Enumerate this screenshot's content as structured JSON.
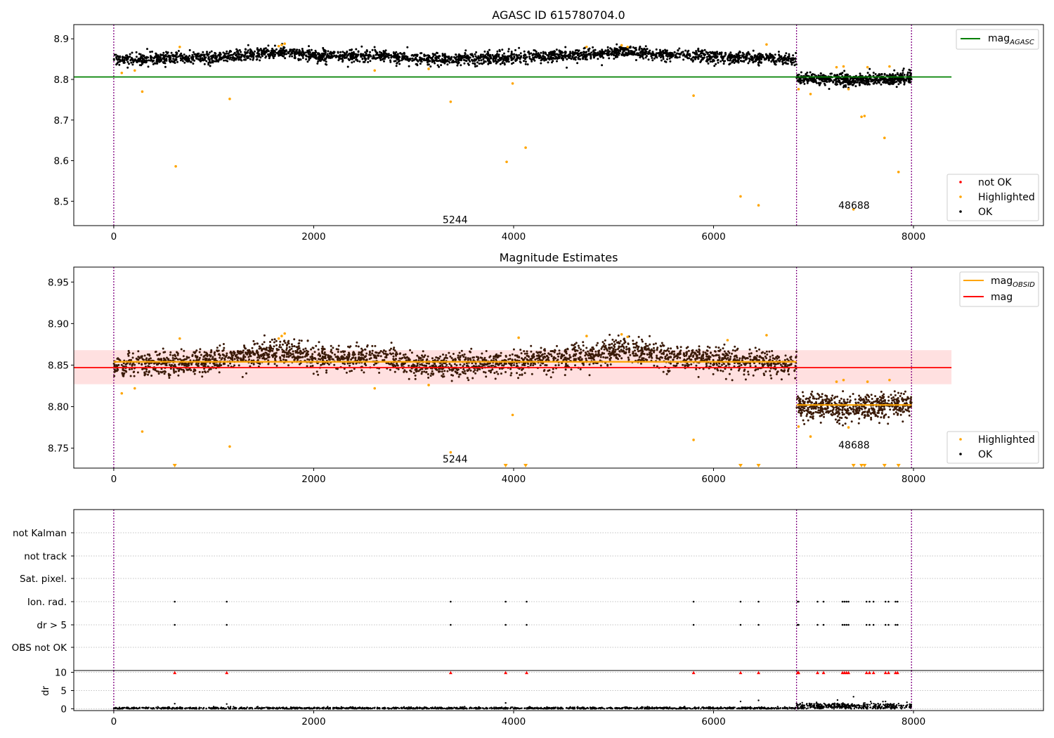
{
  "figure": {
    "type": "scatter",
    "colors": {
      "ok": "#000000",
      "highlighted": "#ffa500",
      "not_ok": "#ff0000",
      "mag_agasc_line": "#008000",
      "mag_line": "#ff0000",
      "mag_obsid_line": "#ffa500",
      "band": "#ffcccc",
      "obsid_boundary": "#800080",
      "grid": "#b0b0b0",
      "ok_mag_panel2": "#3a1a08"
    }
  },
  "chart_data": [
    {
      "type": "scatter",
      "title": "AGASC ID 615780704.0",
      "xlim": [
        -400,
        9300
      ],
      "ylim": [
        8.44,
        8.935
      ],
      "xticks": [
        0,
        2000,
        4000,
        6000,
        8000
      ],
      "yticks": [
        8.5,
        8.6,
        8.7,
        8.8,
        8.9
      ],
      "grid": false,
      "obsid_boundaries": [
        0,
        6830,
        7980
      ],
      "obsid_labels": [
        {
          "text": "5244",
          "x": 3415,
          "y": 8.455
        },
        {
          "text": "48688",
          "x": 7405,
          "y": 8.49
        }
      ],
      "lines": [
        {
          "name": "mag_AGASC",
          "name_base": "mag",
          "name_sub": "AGASC",
          "y": 8.806,
          "x": [
            -400,
            8380
          ]
        }
      ],
      "series": [
        {
          "name": "OK",
          "segments": [
            {
              "x": [
                0,
                6830
              ],
              "trend": [
                [
                  0,
                  8.848
                ],
                [
                  1000,
                  8.855
                ],
                [
                  1700,
                  8.868
                ],
                [
                  2000,
                  8.858
                ],
                [
                  2700,
                  8.86
                ],
                [
                  3000,
                  8.85
                ],
                [
                  3400,
                  8.85
                ],
                [
                  3800,
                  8.852
                ],
                [
                  4400,
                  8.858
                ],
                [
                  4800,
                  8.862
                ],
                [
                  5100,
                  8.87
                ],
                [
                  5500,
                  8.86
                ],
                [
                  6200,
                  8.855
                ],
                [
                  6830,
                  8.85
                ]
              ],
              "spread": 0.012,
              "count": 2600
            },
            {
              "x": [
                6830,
                7980
              ],
              "trend": [
                [
                  6830,
                  8.802
                ],
                [
                  7400,
                  8.798
                ],
                [
                  7980,
                  8.804
                ]
              ],
              "spread": 0.012,
              "count": 600
            }
          ]
        },
        {
          "name": "Highlighted",
          "points": [
            [
              80,
              8.816
            ],
            [
              210,
              8.822
            ],
            [
              285,
              8.77
            ],
            [
              620,
              8.586
            ],
            [
              660,
              8.88
            ],
            [
              1160,
              8.752
            ],
            [
              1680,
              8.885
            ],
            [
              1710,
              8.888
            ],
            [
              1650,
              8.882
            ],
            [
              2610,
              8.822
            ],
            [
              3150,
              8.826
            ],
            [
              3370,
              8.745
            ],
            [
              3930,
              8.597
            ],
            [
              3990,
              8.79
            ],
            [
              4120,
              8.632
            ],
            [
              4730,
              8.88
            ],
            [
              5080,
              8.884
            ],
            [
              5140,
              8.88
            ],
            [
              5800,
              8.76
            ],
            [
              6270,
              8.512
            ],
            [
              6450,
              8.49
            ],
            [
              6530,
              8.886
            ],
            [
              6850,
              8.776
            ],
            [
              6970,
              8.764
            ],
            [
              7230,
              8.83
            ],
            [
              7300,
              8.832
            ],
            [
              7350,
              8.776
            ],
            [
              7400,
              8.48
            ],
            [
              7480,
              8.708
            ],
            [
              7510,
              8.71
            ],
            [
              7540,
              8.83
            ],
            [
              7710,
              8.656
            ],
            [
              7760,
              8.832
            ],
            [
              7850,
              8.572
            ]
          ]
        },
        {
          "name": "not OK",
          "points": []
        }
      ],
      "legends": [
        {
          "position": "upper right",
          "entries": [
            {
              "name_base": "mag",
              "name_sub": "AGASC",
              "kind": "line",
              "color": "#008000"
            }
          ]
        },
        {
          "position": "lower right",
          "entries": [
            {
              "label": "not OK",
              "kind": "dot",
              "color": "#ff0000"
            },
            {
              "label": "Highlighted",
              "kind": "dot",
              "color": "#ffa500"
            },
            {
              "label": "OK",
              "kind": "dot",
              "color": "#000000"
            }
          ]
        }
      ]
    },
    {
      "type": "scatter",
      "title": "Magnitude Estimates",
      "xlim": [
        -400,
        9300
      ],
      "ylim": [
        8.726,
        8.968
      ],
      "xticks": [
        0,
        2000,
        4000,
        6000,
        8000
      ],
      "yticks": [
        8.75,
        8.8,
        8.85,
        8.9,
        8.95
      ],
      "ytick_labels": [
        "8.75",
        "8.80",
        "8.85",
        "8.90",
        "8.95"
      ],
      "grid": false,
      "obsid_boundaries": [
        0,
        6830,
        7980
      ],
      "obsid_labels": [
        {
          "text": "5244",
          "x": 3415,
          "y": 8.737
        },
        {
          "text": "48688",
          "x": 7405,
          "y": 8.754
        }
      ],
      "band": {
        "y": [
          8.827,
          8.868
        ],
        "x": [
          -400,
          8380
        ]
      },
      "lines": [
        {
          "name": "mag",
          "y": 8.847,
          "x": [
            -400,
            8380
          ],
          "color": "#ff0000"
        },
        {
          "name": "mag_OBSID",
          "name_base": "mag",
          "name_sub": "OBSID",
          "segments": [
            {
              "x": [
                0,
                6830
              ],
              "y": 8.854
            },
            {
              "x": [
                6830,
                7980
              ],
              "y": 8.802
            }
          ],
          "color": "#ffa500"
        }
      ],
      "series": [
        {
          "name": "OK",
          "segments": [
            {
              "x": [
                0,
                6830
              ],
              "trend": [
                [
                  0,
                  8.848
                ],
                [
                  1000,
                  8.855
                ],
                [
                  1700,
                  8.868
                ],
                [
                  2000,
                  8.858
                ],
                [
                  2700,
                  8.86
                ],
                [
                  3000,
                  8.85
                ],
                [
                  3400,
                  8.85
                ],
                [
                  3800,
                  8.852
                ],
                [
                  4400,
                  8.858
                ],
                [
                  4800,
                  8.862
                ],
                [
                  5100,
                  8.87
                ],
                [
                  5500,
                  8.86
                ],
                [
                  6200,
                  8.855
                ],
                [
                  6830,
                  8.85
                ]
              ],
              "spread": 0.012,
              "count": 2600
            },
            {
              "x": [
                6830,
                7980
              ],
              "trend": [
                [
                  6830,
                  8.802
                ],
                [
                  7400,
                  8.798
                ],
                [
                  7980,
                  8.804
                ]
              ],
              "spread": 0.012,
              "count": 600
            }
          ]
        },
        {
          "name": "Highlighted",
          "points": [
            [
              80,
              8.816
            ],
            [
              210,
              8.822
            ],
            [
              285,
              8.77
            ],
            [
              660,
              8.882
            ],
            [
              1160,
              8.752
            ],
            [
              1680,
              8.885
            ],
            [
              1710,
              8.888
            ],
            [
              1650,
              8.882
            ],
            [
              2610,
              8.822
            ],
            [
              3150,
              8.826
            ],
            [
              3370,
              8.745
            ],
            [
              3990,
              8.79
            ],
            [
              4050,
              8.883
            ],
            [
              4730,
              8.885
            ],
            [
              5080,
              8.887
            ],
            [
              5140,
              8.884
            ],
            [
              5800,
              8.76
            ],
            [
              6140,
              8.88
            ],
            [
              6530,
              8.886
            ],
            [
              6850,
              8.776
            ],
            [
              6970,
              8.764
            ],
            [
              7230,
              8.83
            ],
            [
              7300,
              8.832
            ],
            [
              7350,
              8.775
            ],
            [
              7540,
              8.83
            ],
            [
              7760,
              8.832
            ]
          ],
          "below_range_markers": [
            610,
            3920,
            4120,
            6270,
            6450,
            7400,
            7480,
            7510,
            7710,
            7850
          ]
        }
      ],
      "legends": [
        {
          "position": "upper right",
          "entries": [
            {
              "name_base": "mag",
              "name_sub": "OBSID",
              "kind": "line",
              "color": "#ffa500"
            },
            {
              "label": "mag",
              "kind": "line",
              "color": "#ff0000"
            }
          ]
        },
        {
          "position": "lower right",
          "entries": [
            {
              "label": "Highlighted",
              "kind": "dot",
              "color": "#ffa500"
            },
            {
              "label": "OK",
              "kind": "dot",
              "color": "#000000"
            }
          ]
        }
      ]
    },
    {
      "type": "scatter",
      "title": "",
      "xlim": [
        -400,
        9300
      ],
      "categories": [
        "not Kalman",
        "not track",
        "Sat. pixel.",
        "Ion. rad.",
        "dr > 5",
        "OBS not OK"
      ],
      "grid": true,
      "obsid_boundaries": [
        0,
        6830,
        7980
      ],
      "flags": {
        "Ion. rad.": [
          610,
          1130,
          3370,
          3920,
          4130,
          5800,
          6270,
          6450,
          6840,
          6850,
          7040,
          7100,
          7290,
          7310,
          7330,
          7350,
          7530,
          7560,
          7600,
          7720,
          7750,
          7820,
          7840
        ],
        "dr > 5": [
          610,
          1130,
          3370,
          3920,
          4130,
          5800,
          6270,
          6450,
          6840,
          6850,
          7040,
          7100,
          7290,
          7310,
          7330,
          7350,
          7530,
          7560,
          7600,
          7720,
          7750,
          7820,
          7840
        ]
      }
    },
    {
      "type": "scatter",
      "title": "",
      "ylabel": "dr",
      "xlim": [
        -400,
        9300
      ],
      "ylim": [
        -0.5,
        10.5
      ],
      "yticks": [
        0,
        5,
        10
      ],
      "xticks": [
        0,
        2000,
        4000,
        6000,
        8000
      ],
      "grid": true,
      "obsid_boundaries": [
        0,
        6830,
        7980
      ],
      "series": [
        {
          "name": "OK",
          "segments": [
            {
              "x": [
                0,
                6830
              ],
              "level": 0.15,
              "spread": 0.15,
              "count": 1400
            },
            {
              "x": [
                6830,
                7980
              ],
              "level": 0.7,
              "spread": 0.45,
              "count": 400
            }
          ],
          "extra_points": [
            [
              610,
              1.4
            ],
            [
              1130,
              1.3
            ],
            [
              3920,
              1.6
            ],
            [
              6270,
              2.0
            ],
            [
              6450,
              2.3
            ],
            [
              7400,
              3.3
            ],
            [
              7720,
              2.0
            ]
          ]
        },
        {
          "name": "not OK",
          "clipped_markers": [
            610,
            1130,
            3370,
            3920,
            4130,
            5800,
            6270,
            6450,
            6840,
            6850,
            7040,
            7100,
            7290,
            7310,
            7330,
            7350,
            7530,
            7560,
            7600,
            7720,
            7750,
            7820,
            7840
          ]
        }
      ]
    }
  ]
}
